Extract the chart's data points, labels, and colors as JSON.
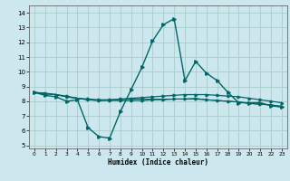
{
  "title": "",
  "xlabel": "Humidex (Indice chaleur)",
  "bg_color": "#cce8ee",
  "grid_color": "#aacccc",
  "line_color": "#006666",
  "xlim": [
    -0.5,
    23.5
  ],
  "ylim": [
    4.8,
    14.5
  ],
  "xticks": [
    0,
    1,
    2,
    3,
    4,
    5,
    6,
    7,
    8,
    9,
    10,
    11,
    12,
    13,
    14,
    15,
    16,
    17,
    18,
    19,
    20,
    21,
    22,
    23
  ],
  "yticks": [
    5,
    6,
    7,
    8,
    9,
    10,
    11,
    12,
    13,
    14
  ],
  "line1_x": [
    0,
    1,
    2,
    3,
    4,
    5,
    6,
    7,
    8,
    9,
    10,
    11,
    12,
    13,
    14,
    15,
    16,
    17,
    18,
    19,
    20,
    21,
    22,
    23
  ],
  "line1_y": [
    8.6,
    8.4,
    8.3,
    8.0,
    8.1,
    6.2,
    5.6,
    5.5,
    7.3,
    8.8,
    10.3,
    12.1,
    13.2,
    13.6,
    9.4,
    10.7,
    9.9,
    9.4,
    8.6,
    7.9,
    7.9,
    7.9,
    7.7,
    7.6
  ],
  "line2_x": [
    0,
    1,
    2,
    3,
    4,
    5,
    6,
    7,
    8,
    9,
    10,
    11,
    12,
    13,
    14,
    15,
    16,
    17,
    18,
    19,
    20,
    21,
    22,
    23
  ],
  "line2_y": [
    8.6,
    8.55,
    8.45,
    8.35,
    8.2,
    8.15,
    8.1,
    8.1,
    8.15,
    8.2,
    8.25,
    8.3,
    8.35,
    8.4,
    8.45,
    8.45,
    8.45,
    8.4,
    8.35,
    8.3,
    8.2,
    8.1,
    8.0,
    7.9
  ],
  "line3_x": [
    0,
    1,
    2,
    3,
    4,
    5,
    6,
    7,
    8,
    9,
    10,
    11,
    12,
    13,
    14,
    15,
    16,
    17,
    18,
    19,
    20,
    21,
    22,
    23
  ],
  "line3_y": [
    8.6,
    8.5,
    8.45,
    8.3,
    8.2,
    8.1,
    8.05,
    8.05,
    8.05,
    8.05,
    8.05,
    8.1,
    8.1,
    8.15,
    8.15,
    8.15,
    8.1,
    8.05,
    8.0,
    7.95,
    7.85,
    7.8,
    7.75,
    7.65
  ],
  "line4_x": [
    0,
    1,
    2,
    3,
    4,
    5,
    6,
    7,
    8,
    9,
    10,
    11,
    12,
    13,
    14,
    15,
    16,
    17,
    18,
    19,
    20,
    21,
    22,
    23
  ],
  "line4_y": [
    8.6,
    8.5,
    8.45,
    8.3,
    8.2,
    8.1,
    8.05,
    8.1,
    8.1,
    8.15,
    8.15,
    8.15,
    8.15,
    8.15,
    8.15,
    8.2,
    8.1,
    8.05,
    8.0,
    7.95,
    7.85,
    7.8,
    7.75,
    7.65
  ]
}
